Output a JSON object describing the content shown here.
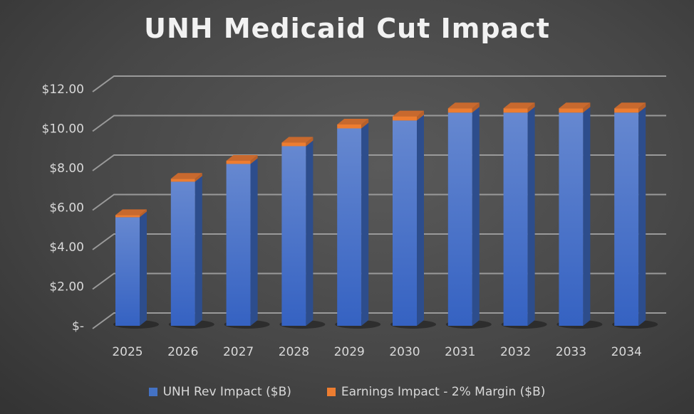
{
  "chart_data": {
    "type": "bar",
    "stacked": true,
    "three_d": true,
    "title": "UNH Medicaid Cut Impact",
    "categories": [
      "2025",
      "2026",
      "2027",
      "2028",
      "2029",
      "2030",
      "2031",
      "2032",
      "2033",
      "2034"
    ],
    "series": [
      {
        "name": "UNH Rev Impact ($B)",
        "color": "#4472c4",
        "values": [
          5.5,
          7.3,
          8.2,
          9.1,
          10.0,
          10.4,
          10.8,
          10.8,
          10.8,
          10.8
        ]
      },
      {
        "name": "Earnings Impact - 2% Margin  ($B)",
        "color": "#ed7d31",
        "values": [
          0.11,
          0.15,
          0.16,
          0.18,
          0.2,
          0.21,
          0.22,
          0.22,
          0.22,
          0.22
        ]
      }
    ],
    "y_ticks": [
      "$-",
      "$2.00",
      "$4.00",
      "$6.00",
      "$8.00",
      "$10.00",
      "$12.00"
    ],
    "ylim": [
      0,
      12
    ],
    "grid": true,
    "legend": "bottom",
    "background": "#4a4a4a"
  }
}
